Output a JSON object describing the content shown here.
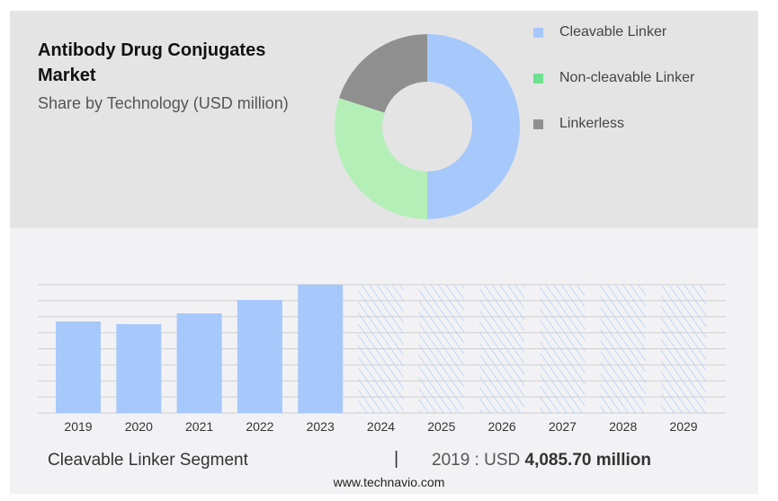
{
  "chart_data": [
    {
      "type": "pie",
      "title": "Antibody Drug Conjugates Market",
      "subtitle": "Share by Technology (USD million)",
      "donut": true,
      "labels": [
        "Cleavable Linker",
        "Non-cleavable Linker",
        "Linkerless"
      ],
      "values": [
        50,
        30,
        20
      ],
      "legend_colors": [
        "#a6c8fb",
        "#6ee08f",
        "#909090"
      ],
      "slice_colors": [
        "#a6c8fb",
        "#b5efb8",
        "#8f8f8f"
      ],
      "legend_position": "right"
    },
    {
      "type": "bar",
      "categories": [
        "2019",
        "2020",
        "2021",
        "2022",
        "2023",
        "2024",
        "2025",
        "2026",
        "2027",
        "2028",
        "2029"
      ],
      "values": [
        4085.7,
        3965,
        4445,
        5045,
        5730,
        null,
        null,
        null,
        null,
        null,
        null
      ],
      "forecast_categories": [
        "2024",
        "2025",
        "2026",
        "2027",
        "2028",
        "2029"
      ],
      "ylim": [
        0,
        5730
      ],
      "grid": true,
      "bar_color": "#a6c8fb",
      "segment_label": "Cleavable Linker Segment",
      "separator": "|",
      "value_prefix": "2019 : USD",
      "value_text": "4,085.70 million"
    }
  ],
  "source": "www.technavio.com"
}
